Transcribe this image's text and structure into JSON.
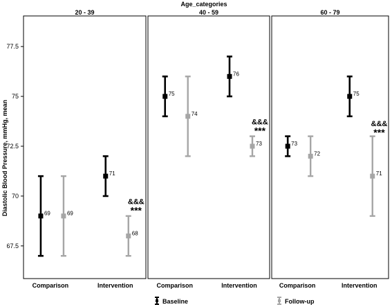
{
  "chart_data": {
    "type": "error-bar",
    "facet_title": "Age_categories",
    "facets": [
      "20 - 39",
      "40 - 59",
      "60 - 79"
    ],
    "categories": [
      "Comparison",
      "Intervention"
    ],
    "ylabel": "Diastolic Blood Pressure, mmHg, mean",
    "ylim": [
      66,
      79
    ],
    "yticks": [
      67.5,
      70,
      72.5,
      75,
      77.5
    ],
    "ytick_labels": [
      "67.5",
      "70",
      "72.5",
      "75",
      "77.5"
    ],
    "legend_position": "bottom",
    "series": [
      {
        "name": "Baseline",
        "color": "#000000",
        "points": [
          {
            "facet": "20 - 39",
            "category": "Comparison",
            "mean": 69,
            "low": 67,
            "high": 71,
            "label": "69"
          },
          {
            "facet": "20 - 39",
            "category": "Intervention",
            "mean": 71,
            "low": 70,
            "high": 72,
            "label": "71"
          },
          {
            "facet": "40 - 59",
            "category": "Comparison",
            "mean": 75,
            "low": 74,
            "high": 76,
            "label": "75"
          },
          {
            "facet": "40 - 59",
            "category": "Intervention",
            "mean": 76,
            "low": 75,
            "high": 77,
            "label": "76"
          },
          {
            "facet": "60 - 79",
            "category": "Comparison",
            "mean": 72.5,
            "low": 72,
            "high": 73,
            "label": "73"
          },
          {
            "facet": "60 - 79",
            "category": "Intervention",
            "mean": 75,
            "low": 74,
            "high": 76,
            "label": "75"
          }
        ]
      },
      {
        "name": "Follow-up",
        "color": "#a6a6a6",
        "points": [
          {
            "facet": "20 - 39",
            "category": "Comparison",
            "mean": 69,
            "low": 67,
            "high": 71,
            "label": "69"
          },
          {
            "facet": "20 - 39",
            "category": "Intervention",
            "mean": 68,
            "low": 67,
            "high": 69,
            "label": "68"
          },
          {
            "facet": "40 - 59",
            "category": "Comparison",
            "mean": 74,
            "low": 72,
            "high": 76,
            "label": "74"
          },
          {
            "facet": "40 - 59",
            "category": "Intervention",
            "mean": 72.5,
            "low": 72,
            "high": 73,
            "label": "73"
          },
          {
            "facet": "60 - 79",
            "category": "Comparison",
            "mean": 72,
            "low": 71,
            "high": 73,
            "label": "72"
          },
          {
            "facet": "60 - 79",
            "category": "Intervention",
            "mean": 71,
            "low": 69,
            "high": 73,
            "label": "71"
          }
        ]
      }
    ],
    "annotations": [
      {
        "facet": "20 - 39",
        "category": "Intervention",
        "lines": [
          "&&&",
          "***"
        ],
        "anchor_value": 69.6
      },
      {
        "facet": "40 - 59",
        "category": "Intervention",
        "lines": [
          "&&&",
          "***"
        ],
        "anchor_value": 73.6
      },
      {
        "facet": "60 - 79",
        "category": "Intervention",
        "lines": [
          "&&&",
          "***"
        ],
        "anchor_value": 73.5
      }
    ]
  }
}
